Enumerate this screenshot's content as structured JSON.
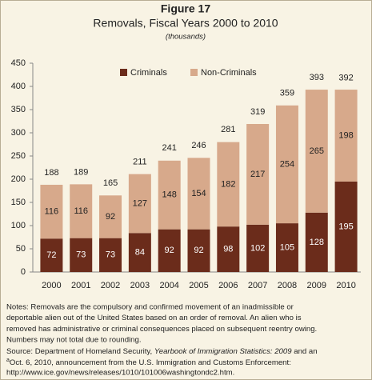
{
  "chart_data": {
    "type": "stacked_bar",
    "title": "Figure 17",
    "subtitle": "Removals, Fiscal Years 2000 to 2010",
    "unit_note": "(thousands)",
    "categories": [
      "2000",
      "2001",
      "2002",
      "2003",
      "2004",
      "2005",
      "2006",
      "2007",
      "2008",
      "2009",
      "2010"
    ],
    "series": [
      {
        "name": "Criminals",
        "color": "#6b2c1b",
        "values": [
          72,
          73,
          73,
          84,
          92,
          92,
          98,
          102,
          105,
          128,
          195
        ]
      },
      {
        "name": "Non-Criminals",
        "color": "#d7a98b",
        "values": [
          116,
          116,
          92,
          127,
          148,
          154,
          182,
          217,
          254,
          265,
          198
        ]
      }
    ],
    "totals": [
      188,
      189,
      165,
      211,
      241,
      246,
      281,
      319,
      359,
      393,
      392
    ],
    "ylim": [
      0,
      450
    ],
    "yticks": [
      0,
      50,
      100,
      150,
      200,
      250,
      300,
      350,
      400,
      450
    ],
    "legend": "top",
    "notes": {
      "lines": [
        "Notes: Removals are the compulsory and confirmed movement of an inadmissible or",
        "deportable alien out of the United States based on an order of removal. An alien who is",
        "removed has administrative or criminal consequences placed on subsequent reentry owing.",
        "Numbers may not total due to rounding."
      ],
      "source_prefix": "Source: Department of Homeland Security, ",
      "source_title": "Yearbook of Immigration Statistics: 2009",
      "source_suffix": " and an",
      "footnote_mark": "a",
      "footnote_text": "Oct. 6, 2010, announcement from the U.S. Immigration and Customs Enforcement:",
      "url": "http://www.ice.gov/news/releases/1010/101006washingtondc2.htm."
    }
  }
}
